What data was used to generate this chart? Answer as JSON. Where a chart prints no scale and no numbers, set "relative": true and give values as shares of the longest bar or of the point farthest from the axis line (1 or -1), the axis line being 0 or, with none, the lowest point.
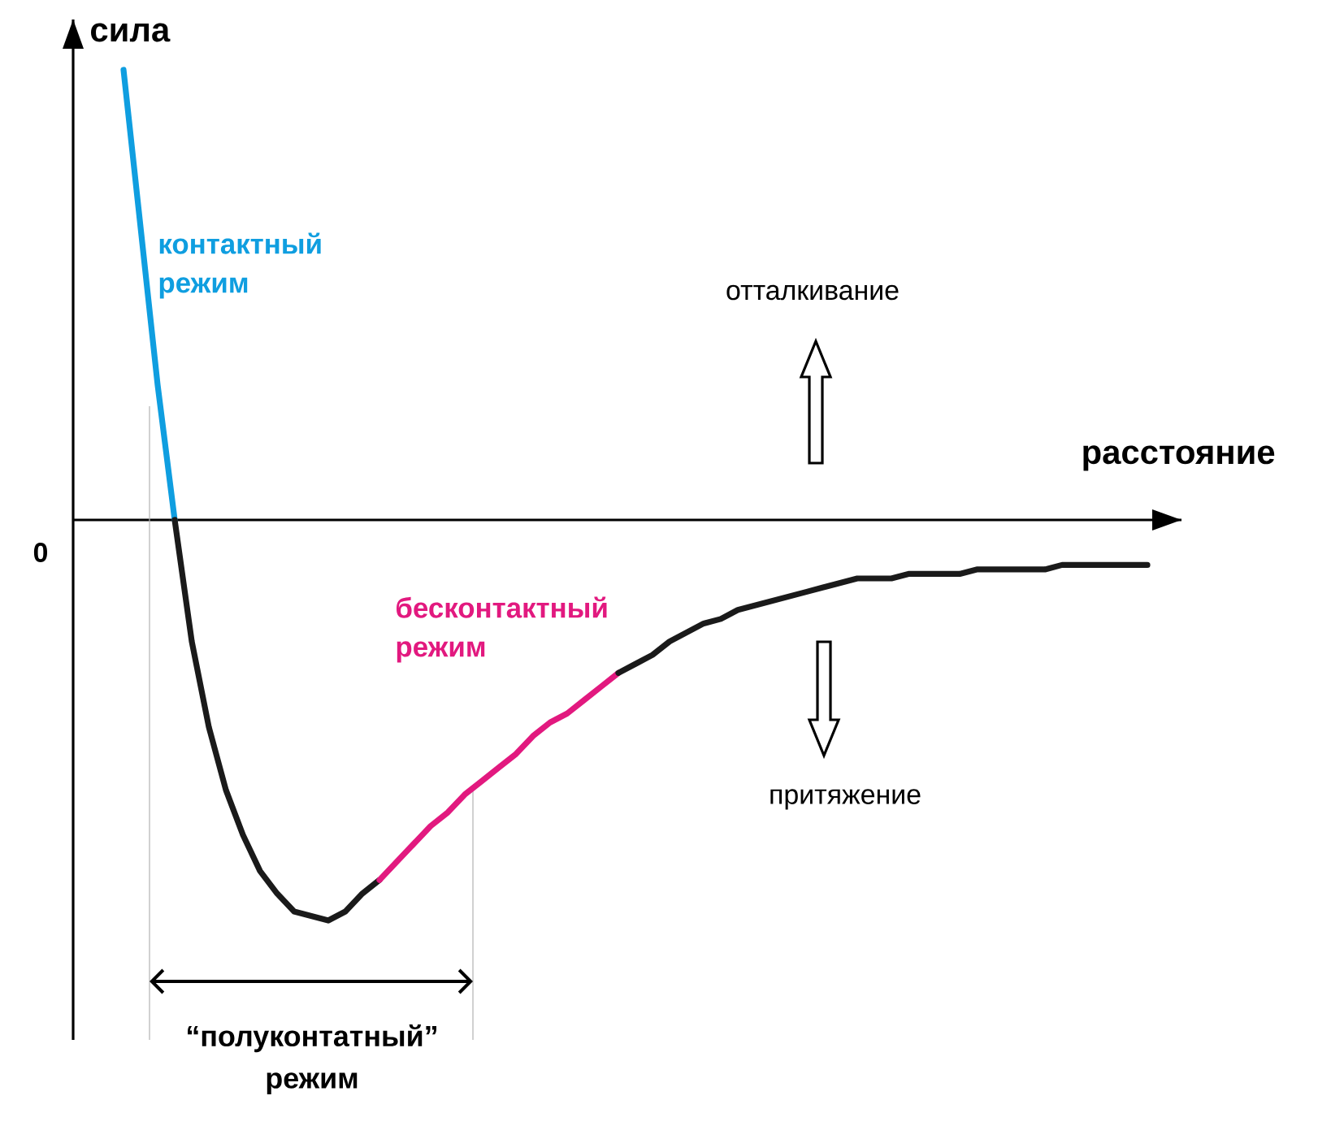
{
  "chart_data": {
    "type": "line",
    "relative": true,
    "xlabel": "расстояние",
    "ylabel": "сила",
    "categories": [
      null,
      null,
      null,
      null,
      null,
      null,
      null,
      null,
      null,
      null,
      null,
      null,
      null,
      null,
      null,
      null,
      null,
      null,
      null,
      null,
      null,
      null,
      null,
      null,
      null,
      null,
      null,
      null,
      null,
      null,
      null,
      null,
      null,
      null,
      null,
      null,
      null,
      null,
      null,
      null,
      null,
      null,
      null,
      null,
      null,
      null,
      null,
      null,
      null,
      null,
      null,
      null,
      null,
      null,
      null,
      null,
      null,
      null,
      null,
      null,
      null
    ],
    "series": [
      {
        "name": "контактный режим",
        "color": "#0f9ee0",
        "values": [
          1.0,
          0.65,
          0.3,
          0.0,
          null,
          null,
          null,
          null,
          null,
          null,
          null,
          null,
          null,
          null,
          null,
          null,
          null,
          null,
          null,
          null,
          null,
          null,
          null,
          null,
          null,
          null,
          null,
          null,
          null,
          null,
          null,
          null,
          null,
          null,
          null,
          null,
          null,
          null,
          null,
          null,
          null,
          null,
          null,
          null,
          null,
          null,
          null,
          null,
          null,
          null,
          null,
          null,
          null,
          null,
          null,
          null,
          null,
          null,
          null,
          null,
          null
        ]
      },
      {
        "color": "#1a1a1a",
        "values": [
          null,
          null,
          null,
          0.0,
          -0.27,
          -0.46,
          -0.6,
          -0.7,
          -0.78,
          -0.83,
          -0.87,
          -0.88,
          -0.89,
          -0.87,
          -0.83,
          -0.8,
          null,
          null,
          null,
          null,
          null,
          null,
          null,
          null,
          null,
          null,
          null,
          null,
          null,
          null,
          null,
          null,
          null,
          null,
          null,
          null,
          null,
          null,
          null,
          null,
          null,
          null,
          null,
          null,
          null,
          null,
          null,
          null,
          null,
          null,
          null,
          null,
          null,
          null,
          null,
          null,
          null,
          null,
          null,
          null,
          null
        ]
      },
      {
        "name": "бесконтактный режим",
        "color": "#e2197f",
        "values": [
          null,
          null,
          null,
          null,
          null,
          null,
          null,
          null,
          null,
          null,
          null,
          null,
          null,
          null,
          null,
          -0.8,
          -0.76,
          -0.72,
          -0.68,
          -0.65,
          -0.61,
          -0.58,
          -0.55,
          -0.52,
          -0.48,
          -0.45,
          -0.43,
          -0.4,
          -0.37,
          -0.34,
          null,
          null,
          null,
          null,
          null,
          null,
          null,
          null,
          null,
          null,
          null,
          null,
          null,
          null,
          null,
          null,
          null,
          null,
          null,
          null,
          null,
          null,
          null,
          null,
          null,
          null,
          null,
          null,
          null,
          null,
          null
        ]
      },
      {
        "color": "#1a1a1a",
        "values": [
          null,
          null,
          null,
          null,
          null,
          null,
          null,
          null,
          null,
          null,
          null,
          null,
          null,
          null,
          null,
          null,
          null,
          null,
          null,
          null,
          null,
          null,
          null,
          null,
          null,
          null,
          null,
          null,
          null,
          -0.34,
          -0.32,
          -0.3,
          -0.27,
          -0.25,
          -0.23,
          -0.22,
          -0.2,
          -0.19,
          -0.18,
          -0.17,
          -0.16,
          -0.15,
          -0.14,
          -0.13,
          -0.13,
          -0.13,
          -0.12,
          -0.12,
          -0.12,
          -0.12,
          -0.11,
          -0.11,
          -0.11,
          -0.11,
          -0.11,
          -0.1,
          -0.1,
          -0.1,
          -0.1,
          -0.1,
          -0.1
        ]
      }
    ],
    "annotations": [
      "0",
      "отталкивание",
      "притяжение",
      "“полуконтатный” режим"
    ]
  }
}
